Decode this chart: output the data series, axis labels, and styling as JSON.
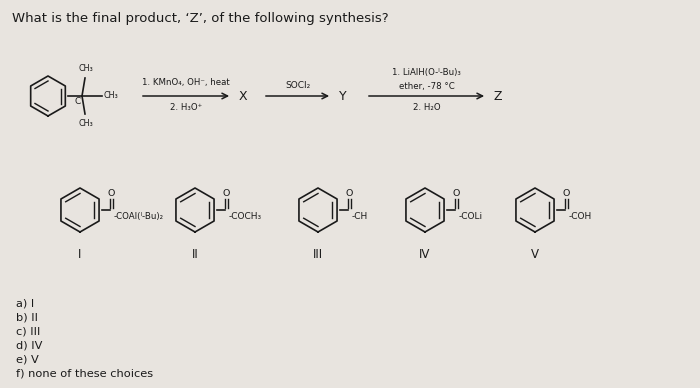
{
  "title": "What is the final product, ‘Z’, of the following synthesis?",
  "bg_color": "#e8e4df",
  "text_color": "#1a1a1a",
  "title_fontsize": 9.5,
  "reaction_arrow1_top": "1. KMnO₄, OH⁻, heat",
  "reaction_arrow1_bot": "2. H₃O⁺",
  "reaction_arrow2": "SOCl₂",
  "reaction_arrow3_top": "1. LiAlH(O-ᴵ-Bu)₃",
  "reaction_arrow3_mid": "ether, -78 °C",
  "reaction_arrow3_bot": "2. H₂O",
  "label_X": "X",
  "label_Y": "Y",
  "label_Z": "Z",
  "choices": [
    "a) I",
    "b) II",
    "c) III",
    "d) IV",
    "e) V",
    "f) none of these choices"
  ],
  "roman": [
    "I",
    "II",
    "III",
    "IV",
    "V"
  ],
  "substituents": [
    "COAI(ᴵ-Bu)₂",
    "COCH₃",
    "CH",
    "COLi",
    "COH"
  ]
}
